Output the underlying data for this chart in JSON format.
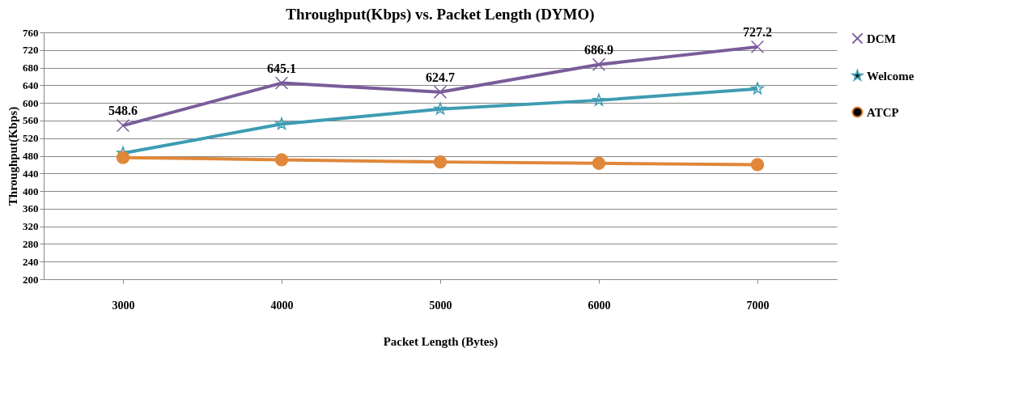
{
  "chart_data": {
    "type": "line",
    "title": "Throughput(Kbps)  vs. Packet Length  (DYMO)",
    "xlabel": "Packet Length  (Bytes)",
    "ylabel": "Throughput(Kbps)",
    "categories": [
      "3000",
      "4000",
      "5000",
      "6000",
      "7000"
    ],
    "series": [
      {
        "name": "DCM",
        "color": "#7a5c9a",
        "marker": "cross",
        "values": [
          548.6,
          645.1,
          624.7,
          686.9,
          727.2
        ],
        "value_labels": [
          "548.6",
          "645.1",
          "624.7",
          "686.9",
          "727.2"
        ]
      },
      {
        "name": "Welcome",
        "color": "#3e9cb3",
        "marker": "star",
        "values": [
          486,
          552,
          586,
          606,
          632
        ]
      },
      {
        "name": "ATCP",
        "color": "#e0873a",
        "marker": "circle",
        "values": [
          476,
          471,
          466,
          463,
          460
        ]
      }
    ],
    "ylim": [
      200,
      760
    ],
    "yticks": [
      200,
      240,
      280,
      320,
      360,
      400,
      440,
      480,
      520,
      560,
      600,
      640,
      680,
      720,
      760
    ],
    "grid": "y",
    "legend": "right",
    "line_style": "solid"
  }
}
